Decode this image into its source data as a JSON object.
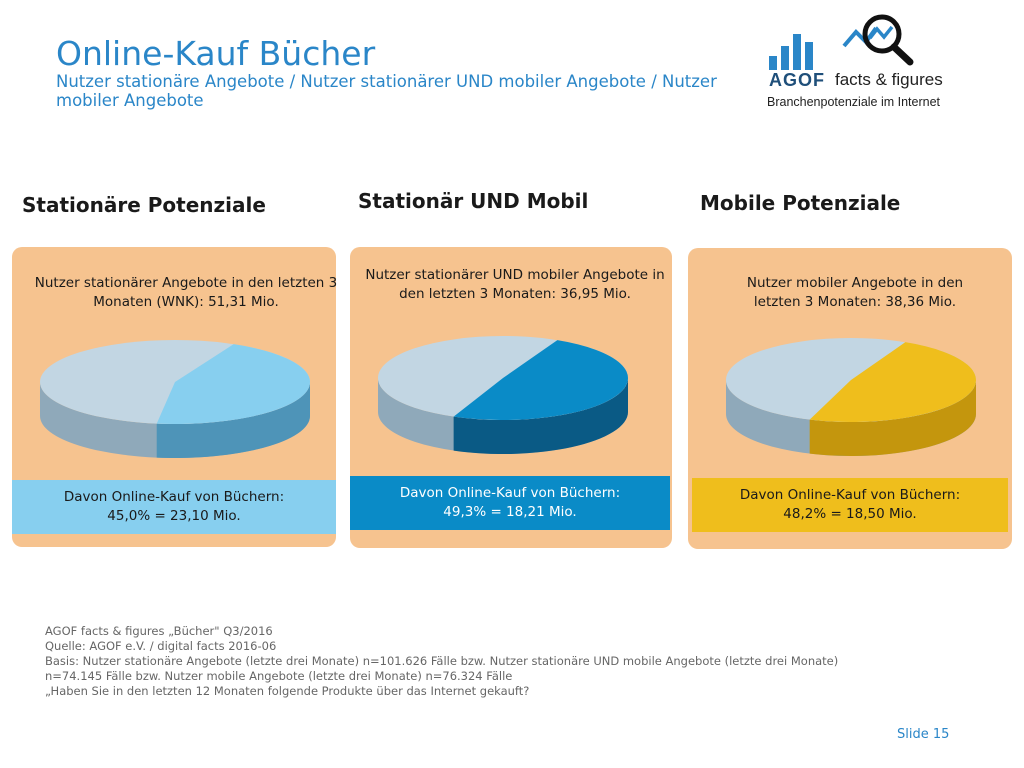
{
  "header": {
    "title": "Online-Kauf Bücher",
    "subtitle": "Nutzer stationäre Angebote / Nutzer stationärer UND mobiler Angebote / Nutzer mobiler Angebote"
  },
  "logo": {
    "brand": "AGOF",
    "product": "facts & figures",
    "tagline": "Branchenpotenziale im Internet"
  },
  "columns": [
    {
      "title": "Stationäre Potenziale",
      "description": "Nutzer stationärer Angebote in den letzten 3 Monaten (WNK): 51,31 Mio.",
      "result_line1": "Davon Online-Kauf von Büchern:",
      "result_line2": "45,0% = 23,10 Mio.",
      "colors": {
        "slice": "#87cfef",
        "slice_dark": "#4e94b8",
        "rest": "#c2d6e3",
        "rest_dark": "#8fa9ba",
        "result_bg": "#87cfef",
        "result_text": "#1a1a1a"
      }
    },
    {
      "title": "Stationär UND Mobil",
      "description": "Nutzer stationärer UND mobiler Angebote in den letzten 3 Monaten: 36,95 Mio.",
      "result_line1": "Davon Online-Kauf von Büchern:",
      "result_line2": "49,3% = 18,21 Mio.",
      "colors": {
        "slice": "#0a8bc7",
        "slice_dark": "#0a5a85",
        "rest": "#c2d6e3",
        "rest_dark": "#8fa9ba",
        "result_bg": "#0a8bc7",
        "result_text": "#ffffff"
      }
    },
    {
      "title": "Mobile Potenziale",
      "description": "Nutzer mobiler Angebote in den letzten 3 Monaten: 38,36 Mio.",
      "result_line1": "Davon Online-Kauf von Büchern:",
      "result_line2": "48,2% = 18,50 Mio.",
      "colors": {
        "slice": "#efbe1c",
        "slice_dark": "#c4960d",
        "rest": "#c2d6e3",
        "rest_dark": "#8fa9ba",
        "result_bg": "#efbe1c",
        "result_text": "#1a1a1a"
      }
    }
  ],
  "chart_data": [
    {
      "type": "pie",
      "title": "Stationäre Potenziale",
      "values": [
        45.0,
        55.0
      ]
    },
    {
      "type": "pie",
      "title": "Stationär UND Mobil",
      "values": [
        49.3,
        50.7
      ]
    },
    {
      "type": "pie",
      "title": "Mobile Potenziale",
      "values": [
        48.2,
        51.8
      ]
    }
  ],
  "footer": {
    "lines": [
      "AGOF facts & figures „Bücher\" Q3/2016",
      "Quelle: AGOF e.V. / digital facts 2016-06",
      "Basis: Nutzer stationäre Angebote (letzte drei Monate) n=101.626 Fälle bzw. Nutzer stationäre UND mobile Angebote (letzte drei Monate)",
      "n=74.145 Fälle bzw. Nutzer mobile Angebote (letzte drei Monate) n=76.324 Fälle",
      "„Haben Sie in den letzten 12 Monaten folgende Produkte über das Internet gekauft?"
    ],
    "slide": "Slide 15"
  }
}
